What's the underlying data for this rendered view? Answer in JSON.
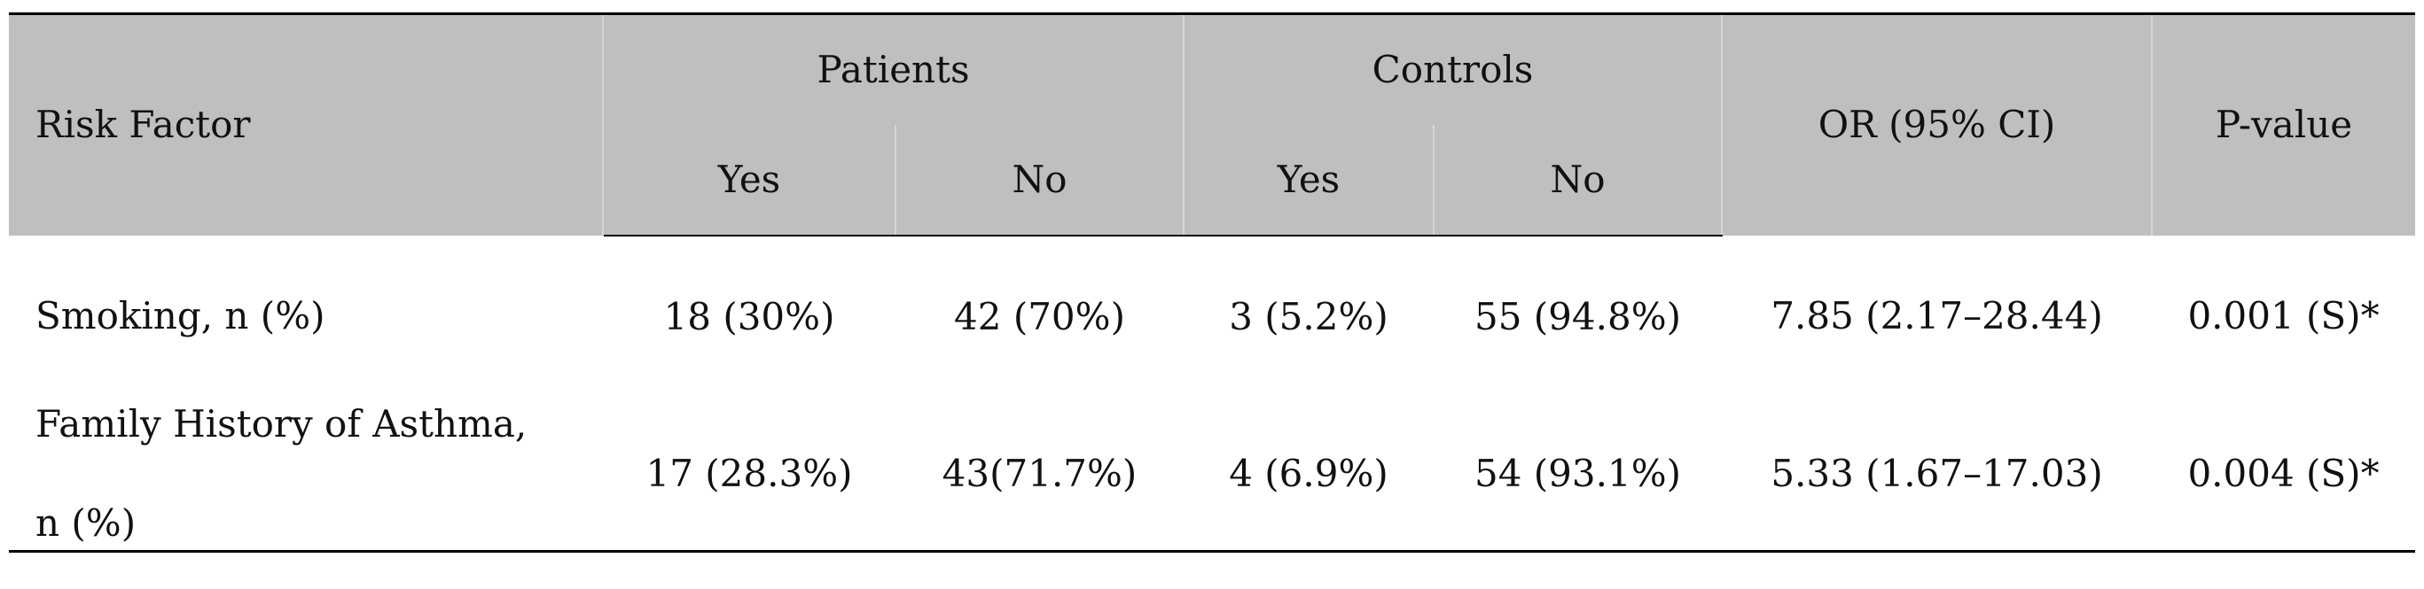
{
  "table": {
    "header": {
      "risk_factor": "Risk Factor",
      "patients": "Patients",
      "controls": "Controls",
      "or_ci": "OR (95% CI)",
      "p_value": "P-value",
      "yes": "Yes",
      "no": "No"
    },
    "rows": [
      {
        "label_line1": "Smoking, n (%)",
        "patients_yes": "18 (30%)",
        "patients_no": "42 (70%)",
        "controls_yes": "3 (5.2%)",
        "controls_no": "55 (94.8%)",
        "or_ci": "7.85 (2.17–28.44)",
        "p_value": "0.001 (S)*"
      },
      {
        "label_line1": "Family History of Asthma,",
        "label_line2": "n (%)",
        "patients_yes": "17 (28.3%)",
        "patients_no": "43(71.7%)",
        "controls_yes": "4 (6.9%)",
        "controls_no": "54 (93.1%)",
        "or_ci": "5.33 (1.67–17.03)",
        "p_value": "0.004 (S)*"
      }
    ]
  },
  "colors": {
    "header_bg": "#bfbfbf",
    "rule": "#000000",
    "text": "#111111"
  }
}
